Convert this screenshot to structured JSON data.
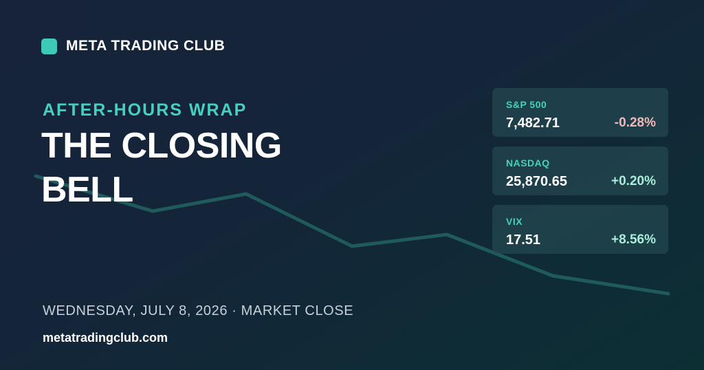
{
  "brand": {
    "name": "META TRADING CLUB",
    "accent_color": "#3ecbb5"
  },
  "header": {
    "kicker": "AFTER-HOURS WRAP",
    "headline": "THE CLOSING BELL"
  },
  "footer": {
    "date_line": "WEDNESDAY, JULY 8, 2026 · MARKET CLOSE",
    "site": "metatradingclub.com"
  },
  "indices": [
    {
      "name": "S&P 500",
      "value": "7,482.71",
      "change": "-0.28%",
      "direction": "down",
      "change_color": "#f2b8b5"
    },
    {
      "name": "NASDAQ",
      "value": "25,870.65",
      "change": "+0.20%",
      "direction": "up",
      "change_color": "#a8ecd9"
    },
    {
      "name": "VIX",
      "value": "17.51",
      "change": "+8.56%",
      "direction": "up",
      "change_color": "#a8ecd9"
    }
  ],
  "colors": {
    "label_teal": "#46d1bc",
    "trend_line": "#1f5a5c"
  }
}
